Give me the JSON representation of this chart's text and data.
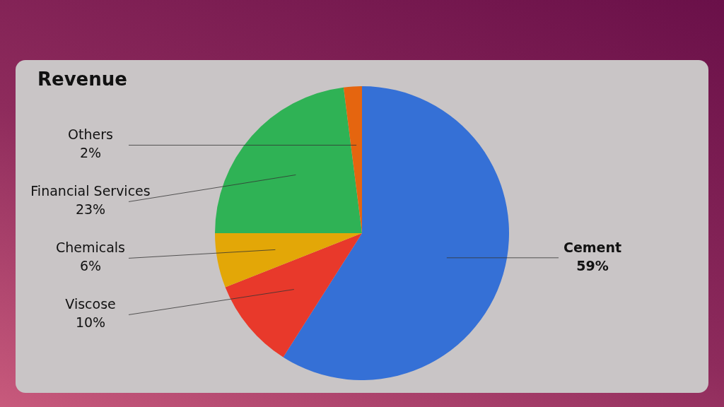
{
  "chart_data": {
    "type": "pie",
    "title": "Revenue",
    "categories": [
      "Cement",
      "Viscose",
      "Chemicals",
      "Financial Services",
      "Others"
    ],
    "values": [
      59,
      10,
      6,
      23,
      2
    ],
    "value_labels": [
      "59%",
      "10%",
      "6%",
      "23%",
      "2%"
    ],
    "colors": [
      "#3570d6",
      "#e8392b",
      "#e3a707",
      "#2fb255",
      "#e5650f"
    ],
    "legend": false
  }
}
